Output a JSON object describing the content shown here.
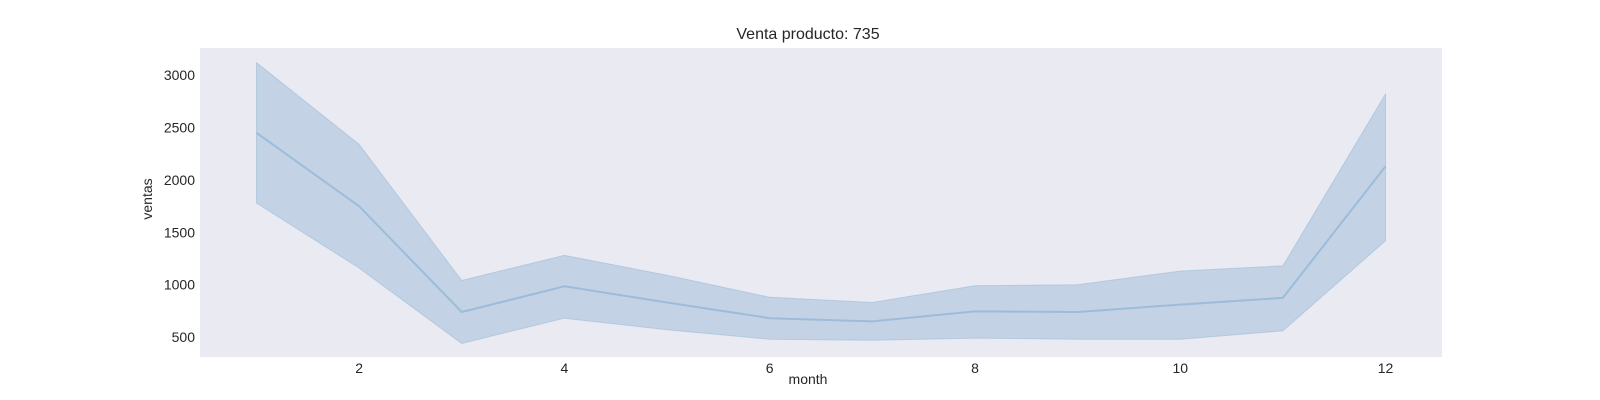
{
  "chart_data": {
    "type": "line",
    "title": "Venta producto: 735",
    "xlabel": "month",
    "ylabel": "ventas",
    "xlim": [
      0.45,
      12.55
    ],
    "ylim": [
      310,
      3260
    ],
    "xticks": [
      2,
      4,
      6,
      8,
      10,
      12
    ],
    "yticks": [
      500,
      1000,
      1500,
      2000,
      2500,
      3000
    ],
    "grid": false,
    "colors": {
      "plot_background": "#eaeaf2",
      "line": "#9dbcd9",
      "band": "#c3d3e5"
    },
    "series": [
      {
        "x": [
          1,
          2,
          3,
          4,
          5,
          6,
          7,
          8,
          9,
          10,
          11,
          12
        ],
        "values": [
          2450,
          1750,
          740,
          985,
          830,
          680,
          650,
          745,
          740,
          810,
          875,
          2130
        ],
        "ci_lower": [
          1780,
          1160,
          440,
          680,
          570,
          480,
          470,
          490,
          480,
          480,
          560,
          1420
        ],
        "ci_upper": [
          3120,
          2340,
          1040,
          1280,
          1090,
          880,
          830,
          990,
          1000,
          1130,
          1180,
          2820
        ]
      }
    ]
  }
}
